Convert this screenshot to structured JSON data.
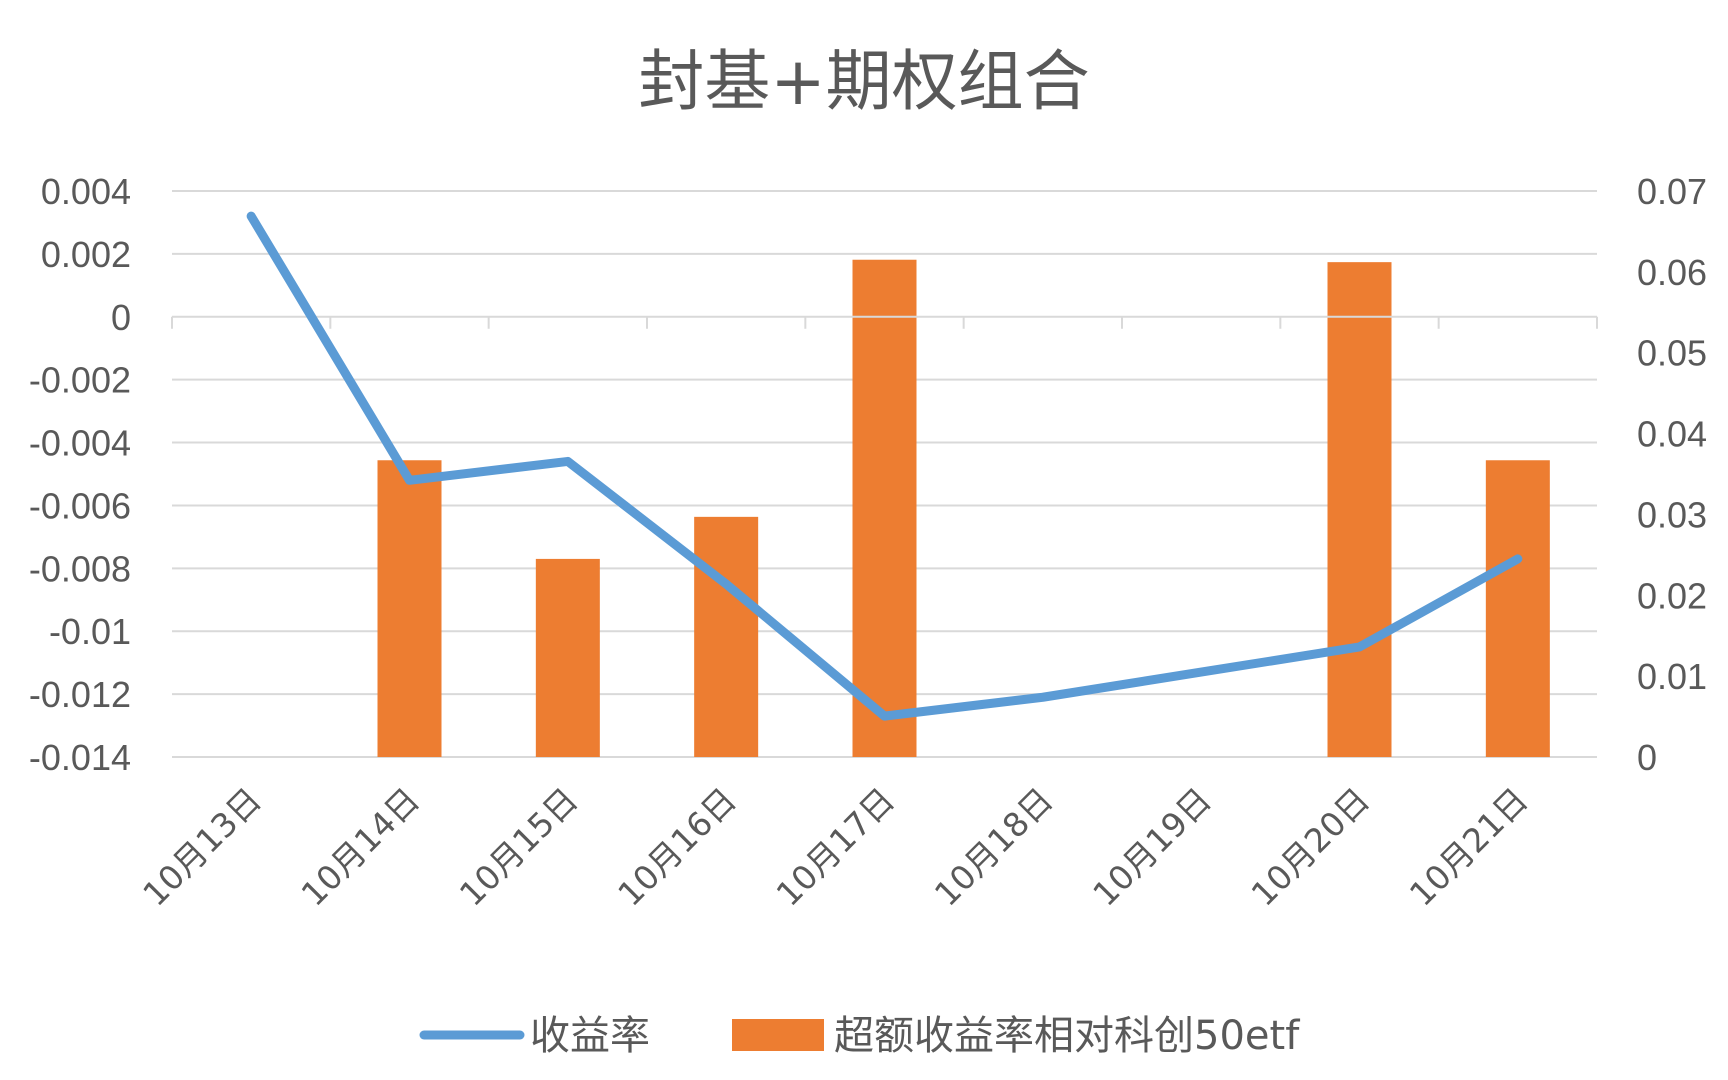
{
  "chart_data": {
    "type": "bar",
    "title": "封基+期权组合",
    "categories": [
      "10月13日",
      "10月14日",
      "10月15日",
      "10月16日",
      "10月17日",
      "10月18日",
      "10月19日",
      "10月20日",
      "10月21日"
    ],
    "series": [
      {
        "name": "收益率",
        "type": "line",
        "axis": "left",
        "color": "#5B9BD5",
        "values": [
          0.0032,
          -0.0052,
          -0.0046,
          -0.0085,
          -0.0127,
          -0.0121,
          -0.0113,
          -0.0105,
          -0.0077
        ]
      },
      {
        "name": "超额收益率相对科创50etf",
        "type": "bar",
        "axis": "right",
        "color": "#ED7D31",
        "values": [
          null,
          0.0367,
          0.0245,
          0.0297,
          0.0615,
          null,
          null,
          0.0612,
          0.0367
        ]
      }
    ],
    "y_left": {
      "ylim": [
        -0.014,
        0.004
      ],
      "ticks": [
        0.004,
        0.002,
        0,
        -0.002,
        -0.004,
        -0.006,
        -0.008,
        -0.01,
        -0.012,
        -0.014
      ],
      "tick_labels": [
        "0.004",
        "0.002",
        "0",
        "-0.002",
        "-0.004",
        "-0.006",
        "-0.008",
        "-0.01",
        "-0.012",
        "-0.014"
      ]
    },
    "y_right": {
      "ylim": [
        0,
        0.07
      ],
      "ticks": [
        0.07,
        0.06,
        0.05,
        0.04,
        0.03,
        0.02,
        0.01,
        0
      ],
      "tick_labels": [
        "0.07",
        "0.06",
        "0.05",
        "0.04",
        "0.03",
        "0.02",
        "0.01",
        "0"
      ]
    },
    "grid": true,
    "legend_position": "bottom"
  }
}
